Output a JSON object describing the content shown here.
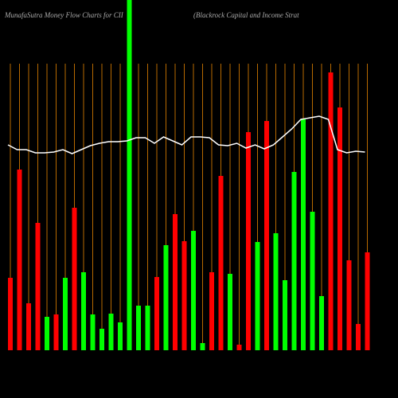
{
  "chart_data": {
    "type": "bar",
    "title": "MunafaSutra  Money Flow  Charts for CII",
    "subtitle": "(Blackrock Capital and Income   Strat",
    "categories": [
      null,
      null,
      null,
      null,
      null,
      null,
      null,
      null,
      null,
      null,
      null,
      null,
      null,
      null,
      null,
      null,
      null,
      null,
      null,
      null,
      null,
      null,
      null,
      null,
      null,
      null,
      null,
      null,
      null,
      null,
      null,
      null,
      null,
      null,
      null,
      null,
      null,
      null,
      null,
      null
    ],
    "values": [
      91,
      227,
      59,
      160,
      42,
      45,
      91,
      179,
      98,
      45,
      27,
      46,
      35,
      440,
      56,
      56,
      92,
      132,
      171,
      137,
      150,
      9,
      98,
      219,
      96,
      7,
      274,
      136,
      288,
      147,
      88,
      224,
      291,
      174,
      68,
      349,
      305,
      113,
      33,
      123
    ],
    "colors": [
      "#ff0000",
      "#ff0000",
      "#ff0000",
      "#ff0000",
      "#00ff00",
      "#ff0000",
      "#00ff00",
      "#ff0000",
      "#00ff00",
      "#00ff00",
      "#00ff00",
      "#00ff00",
      "#00ff00",
      "#00ff00",
      "#00ff00",
      "#00ff00",
      "#ff0000",
      "#00ff00",
      "#ff0000",
      "#ff0000",
      "#00ff00",
      "#00ff00",
      "#ff0000",
      "#ff0000",
      "#00ff00",
      "#ff0000",
      "#ff0000",
      "#00ff00",
      "#ff0000",
      "#00ff00",
      "#00ff00",
      "#00ff00",
      "#00ff00",
      "#00ff00",
      "#00ff00",
      "#ff0000",
      "#ff0000",
      "#ff0000",
      "#ff0000",
      "#ff0000"
    ],
    "line": {
      "color": "#ffffff",
      "values": [
        258,
        252,
        252,
        248,
        248,
        249,
        252,
        247,
        252,
        257,
        260,
        262,
        262,
        263,
        267,
        267,
        260,
        268,
        263,
        258,
        268,
        268,
        267,
        258,
        257,
        260,
        254,
        258,
        253,
        258,
        268,
        278,
        290,
        292,
        294,
        290,
        252,
        248,
        250,
        249
      ]
    },
    "grid_color": "#b86a00",
    "ylim": [
      0,
      440
    ]
  }
}
